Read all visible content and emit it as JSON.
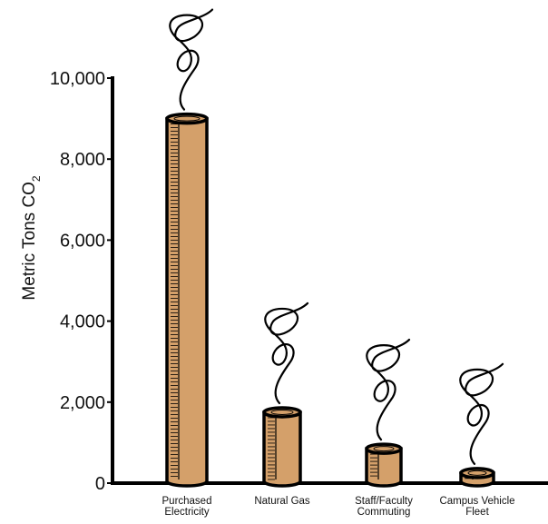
{
  "chart_data": {
    "type": "bar",
    "ylabel": "Metric Tons CO",
    "ylabel_subscript": "2",
    "ylim": [
      0,
      10000
    ],
    "yticks": [
      0,
      2000,
      4000,
      6000,
      8000,
      10000
    ],
    "ytick_labels": [
      "0",
      "2,000",
      "4,000",
      "6,000",
      "8,000",
      "10,000"
    ],
    "categories": [
      [
        "Purchased",
        "Electricity"
      ],
      [
        "Natural Gas"
      ],
      [
        "Staff/Faculty",
        "Commuting"
      ],
      [
        "Campus Vehicle",
        "Fleet"
      ]
    ],
    "values": [
      9000,
      1750,
      850,
      250
    ],
    "bar_color": "#d4a06a",
    "outline_color": "#000000",
    "grid": false,
    "legend": "none"
  }
}
